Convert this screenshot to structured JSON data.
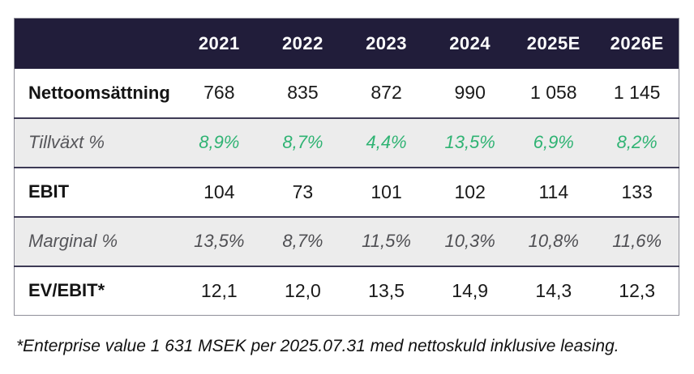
{
  "table": {
    "columns": [
      "2021",
      "2022",
      "2023",
      "2024",
      "2025E",
      "2026E"
    ],
    "rows": [
      {
        "label": "Nettoomsättning",
        "type": "plain",
        "values": [
          "768",
          "835",
          "872",
          "990",
          "1 058",
          "1 145"
        ]
      },
      {
        "label": "Tillväxt %",
        "type": "shaded-green",
        "values": [
          "8,9%",
          "8,7%",
          "4,4%",
          "13,5%",
          "6,9%",
          "8,2%"
        ]
      },
      {
        "label": "EBIT",
        "type": "plain",
        "values": [
          "104",
          "73",
          "101",
          "102",
          "114",
          "133"
        ]
      },
      {
        "label": "Marginal %",
        "type": "shaded-gray",
        "values": [
          "13,5%",
          "8,7%",
          "11,5%",
          "10,3%",
          "10,8%",
          "11,6%"
        ]
      },
      {
        "label": "EV/EBIT*",
        "type": "plain",
        "values": [
          "12,1",
          "12,0",
          "13,5",
          "14,9",
          "14,3",
          "12,3"
        ]
      }
    ]
  },
  "footnote": "*Enterprise value 1 631 MSEK per 2025.07.31 med nettoskuld inklusive leasing.",
  "colors": {
    "header_bg": "#211d3a",
    "header_text": "#ffffff",
    "accent_green": "#2fb373",
    "shaded_row_bg": "#ececec",
    "muted_italic_text": "#4f4f53",
    "row_border": "#3d3a55",
    "outer_border": "#8f8f99"
  },
  "chart_data": {
    "type": "table",
    "title": "",
    "columns": [
      "",
      "2021",
      "2022",
      "2023",
      "2024",
      "2025E",
      "2026E"
    ],
    "rows": [
      [
        "Nettoomsättning",
        "768",
        "835",
        "872",
        "990",
        "1 058",
        "1 145"
      ],
      [
        "Tillväxt %",
        "8,9%",
        "8,7%",
        "4,4%",
        "13,5%",
        "6,9%",
        "8,2%"
      ],
      [
        "EBIT",
        "104",
        "73",
        "101",
        "102",
        "114",
        "133"
      ],
      [
        "Marginal %",
        "13,5%",
        "8,7%",
        "11,5%",
        "10,3%",
        "10,8%",
        "11,6%"
      ],
      [
        "EV/EBIT*",
        "12,1",
        "12,0",
        "13,5",
        "14,9",
        "14,3",
        "12,3"
      ]
    ],
    "footnote": "*Enterprise value 1 631 MSEK per 2025.07.31 med nettoskuld inklusive leasing."
  }
}
